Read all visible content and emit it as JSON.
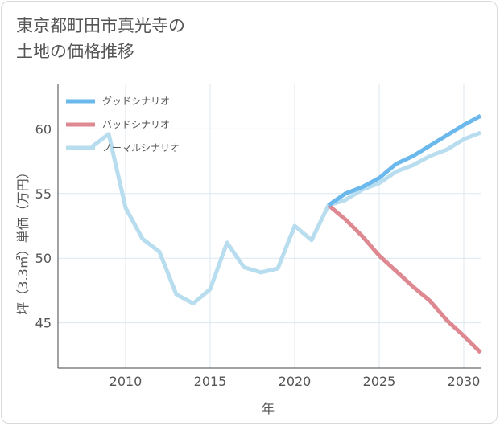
{
  "title": {
    "line1": "東京都町田市真光寺の",
    "line2": "土地の価格推移"
  },
  "chart_data": {
    "type": "line",
    "title": "東京都町田市真光寺の土地の価格推移",
    "xlabel": "年",
    "ylabel": "坪（3.3㎡）単価（万円）",
    "xlim": [
      2006,
      2031
    ],
    "ylim": [
      41.5,
      63.5
    ],
    "x_ticks": [
      2010,
      2015,
      2020,
      2025,
      2030
    ],
    "y_ticks": [
      45,
      50,
      55,
      60
    ],
    "legend_position": "top-left",
    "grid": true,
    "series": [
      {
        "name": "グッドシナリオ",
        "color": "#6bb8ec",
        "x": [
          2022,
          2023,
          2024,
          2025,
          2026,
          2027,
          2028,
          2029,
          2030,
          2031
        ],
        "values": [
          54.1,
          55.0,
          55.5,
          56.2,
          57.3,
          57.9,
          58.7,
          59.5,
          60.3,
          61.0
        ]
      },
      {
        "name": "バッドシナリオ",
        "color": "#de8891",
        "x": [
          2022,
          2023,
          2024,
          2025,
          2026,
          2027,
          2028,
          2029,
          2030,
          2031
        ],
        "values": [
          54.1,
          53.0,
          51.7,
          50.2,
          49.0,
          47.8,
          46.7,
          45.2,
          44.0,
          42.7
        ]
      },
      {
        "name": "ノーマルシナリオ",
        "color": "#b7ddef",
        "x": [
          2008,
          2009,
          2010,
          2011,
          2012,
          2013,
          2014,
          2015,
          2016,
          2017,
          2018,
          2019,
          2020,
          2021,
          2022,
          2023,
          2024,
          2025,
          2026,
          2027,
          2028,
          2029,
          2030,
          2031
        ],
        "values": [
          58.6,
          59.6,
          53.9,
          51.5,
          50.5,
          47.2,
          46.5,
          47.6,
          51.2,
          49.3,
          48.9,
          49.2,
          52.5,
          51.4,
          54.1,
          54.5,
          55.3,
          55.8,
          56.7,
          57.2,
          57.9,
          58.4,
          59.2,
          59.7
        ]
      }
    ]
  }
}
